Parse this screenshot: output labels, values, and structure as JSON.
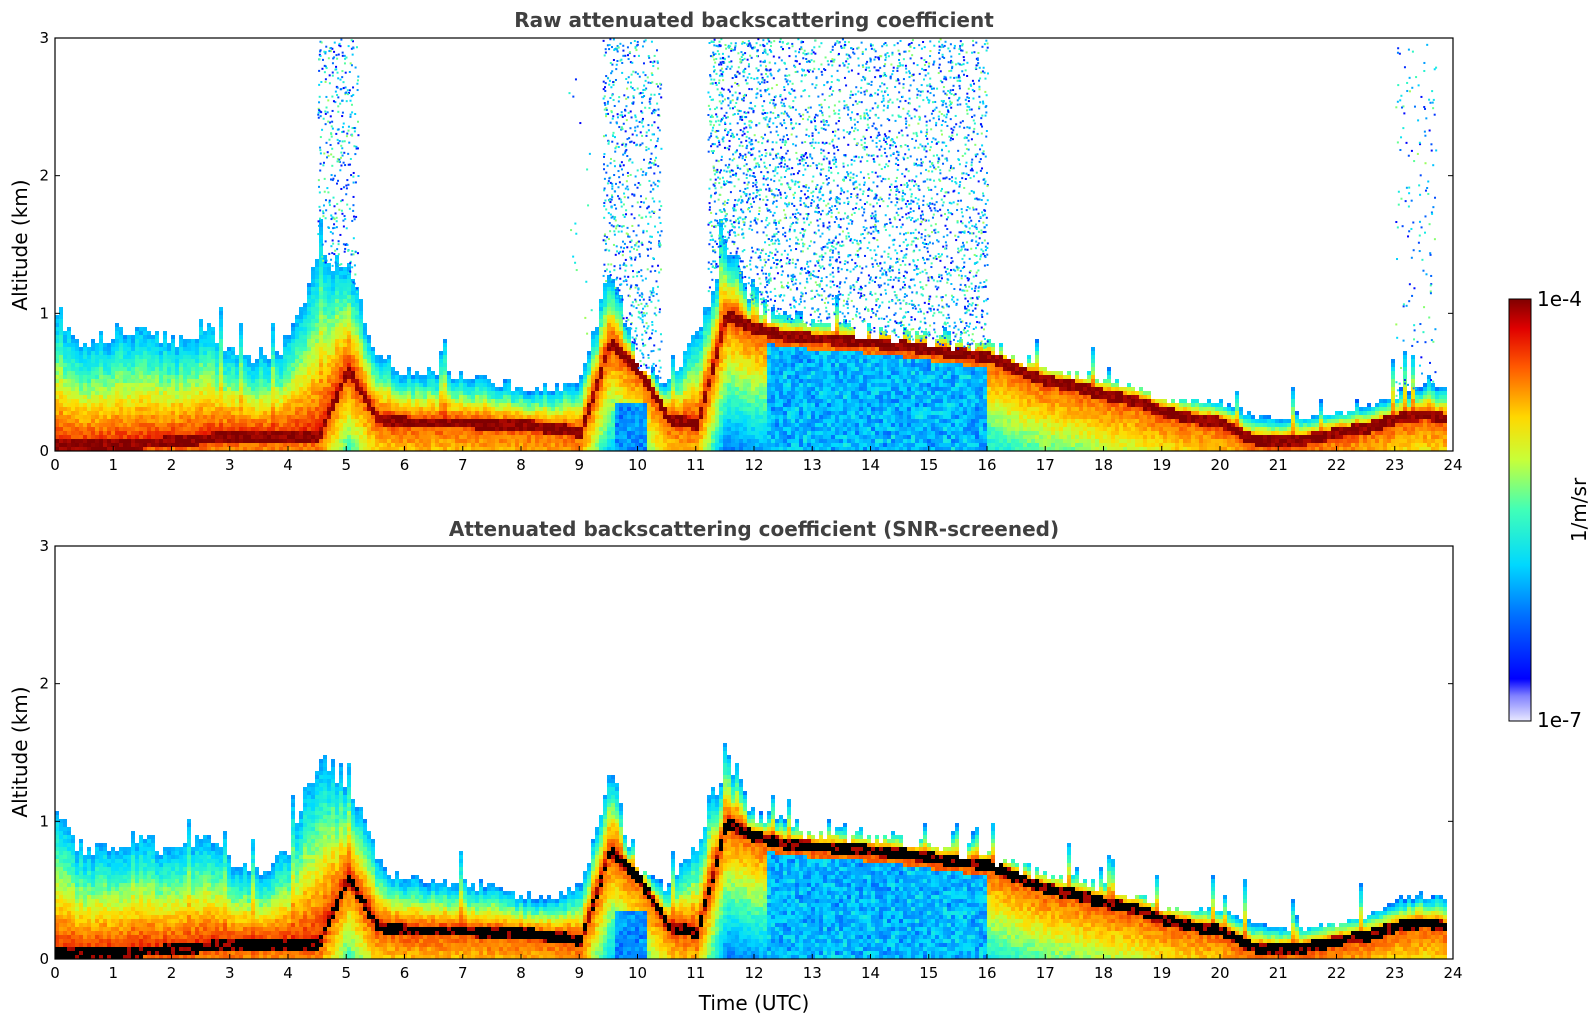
{
  "chart_data": [
    {
      "type": "heatmap",
      "title": "Raw attenuated backscattering coefficient",
      "xlabel": "",
      "ylabel": "Altitude (km)",
      "xlim": [
        0,
        24
      ],
      "ylim": [
        0,
        3
      ],
      "x_ticks": [
        "0",
        "1",
        "2",
        "3",
        "4",
        "5",
        "6",
        "7",
        "8",
        "9",
        "10",
        "11",
        "12",
        "13",
        "14",
        "15",
        "16",
        "17",
        "18",
        "19",
        "20",
        "21",
        "22",
        "23",
        "24"
      ],
      "y_ticks": [
        "0",
        "1",
        "2",
        "3"
      ],
      "grid": false,
      "noise_present": true,
      "layer_profile": {
        "description_points_time_utc": [
          0,
          0.5,
          1,
          1.5,
          2,
          2.5,
          3,
          3.5,
          4,
          4.5,
          5,
          5.5,
          6,
          6.5,
          7,
          7.5,
          8,
          8.5,
          9,
          9.5,
          10,
          10.5,
          11,
          11.5,
          12,
          12.5,
          13,
          13.5,
          14,
          14.5,
          15,
          15.5,
          16,
          16.5,
          17,
          17.5,
          18,
          18.5,
          19,
          19.5,
          20,
          20.5,
          21,
          21.5,
          22,
          22.5,
          23,
          23.5,
          23.8
        ],
        "signal_top_km": [
          1.0,
          0.75,
          0.85,
          0.85,
          0.78,
          0.9,
          0.7,
          0.6,
          0.8,
          1.4,
          1.3,
          0.7,
          0.55,
          0.55,
          0.55,
          0.5,
          0.45,
          0.45,
          0.5,
          1.3,
          0.6,
          0.5,
          0.85,
          1.5,
          1.05,
          0.95,
          0.92,
          0.9,
          0.85,
          0.82,
          0.8,
          0.75,
          0.75,
          0.65,
          0.6,
          0.55,
          0.5,
          0.45,
          0.35,
          0.35,
          0.35,
          0.25,
          0.22,
          0.22,
          0.25,
          0.3,
          0.4,
          0.45,
          0.45
        ],
        "max_layer_km": [
          0.05,
          0.05,
          0.05,
          0.07,
          0.08,
          0.1,
          0.12,
          0.12,
          0.12,
          0.12,
          0.6,
          0.25,
          0.22,
          0.22,
          0.22,
          0.2,
          0.2,
          0.18,
          0.15,
          0.8,
          0.6,
          0.25,
          0.2,
          1.0,
          0.9,
          0.85,
          0.83,
          0.82,
          0.8,
          0.78,
          0.75,
          0.72,
          0.7,
          0.6,
          0.52,
          0.48,
          0.42,
          0.38,
          0.3,
          0.25,
          0.22,
          0.1,
          0.08,
          0.1,
          0.15,
          0.18,
          0.25,
          0.28,
          0.25
        ]
      }
    },
    {
      "type": "heatmap",
      "title": "Attenuated backscattering coefficient (SNR-screened)",
      "xlabel": "Time (UTC)",
      "ylabel": "Altitude (km)",
      "xlim": [
        0,
        24
      ],
      "ylim": [
        0,
        3
      ],
      "x_ticks": [
        "0",
        "1",
        "2",
        "3",
        "4",
        "5",
        "6",
        "7",
        "8",
        "9",
        "10",
        "11",
        "12",
        "13",
        "14",
        "15",
        "16",
        "17",
        "18",
        "19",
        "20",
        "21",
        "22",
        "23",
        "24"
      ],
      "y_ticks": [
        "0",
        "1",
        "2",
        "3"
      ],
      "grid": false,
      "noise_present": false,
      "saturated_color": "#000000"
    }
  ],
  "colorbar": {
    "max_label": "1e-4",
    "min_label": "1e-7",
    "unit_label": "1/m/sr",
    "colormap": "jet",
    "scale": "log"
  }
}
